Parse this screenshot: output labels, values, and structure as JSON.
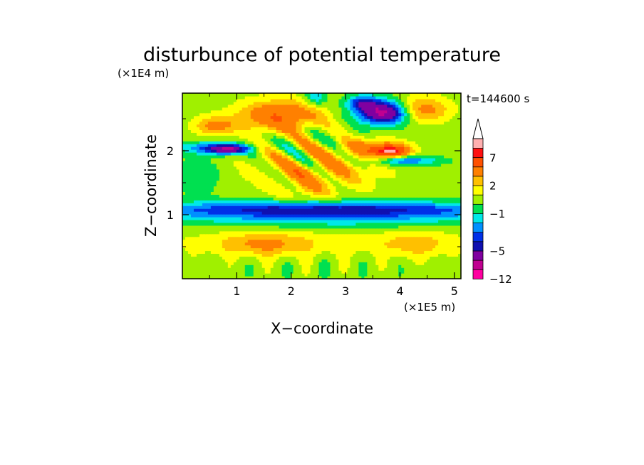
{
  "chart_data": {
    "type": "heatmap",
    "title": "disturbunce of potential temperature",
    "xlabel": "X−coordinate",
    "ylabel": "Z−coordinate",
    "x_unit": "(×1E5 m)",
    "y_unit": "(×1E4 m)",
    "time_label": "t=144600 s",
    "xlim": [
      0,
      5.12
    ],
    "ylim": [
      0,
      2.9
    ],
    "x_ticks": [
      1,
      2,
      3,
      4,
      5
    ],
    "y_ticks": [
      1,
      2
    ],
    "x_tick_labels": [
      "1",
      "2",
      "3",
      "4",
      "5"
    ],
    "y_tick_labels": [
      "1",
      "2"
    ],
    "colorbar": {
      "levels": [
        -12,
        -9,
        -7,
        -5,
        -4,
        -3,
        -2,
        -1,
        0,
        1,
        2,
        3,
        5,
        7,
        8,
        9
      ],
      "tick_values": [
        -12,
        -5,
        -1,
        2,
        7
      ],
      "tick_labels": [
        "−12",
        "−5",
        "−1",
        "2",
        "7"
      ],
      "colors": [
        "#ff00a0",
        "#c00090",
        "#8000a0",
        "#1010b0",
        "#0030e8",
        "#0090ff",
        "#00e8e8",
        "#00e050",
        "#a0f000",
        "#ffff00",
        "#ffc000",
        "#ff8000",
        "#ff5000",
        "#ff1010",
        "#ffb0b0"
      ],
      "extend": "max"
    },
    "grid": false
  }
}
